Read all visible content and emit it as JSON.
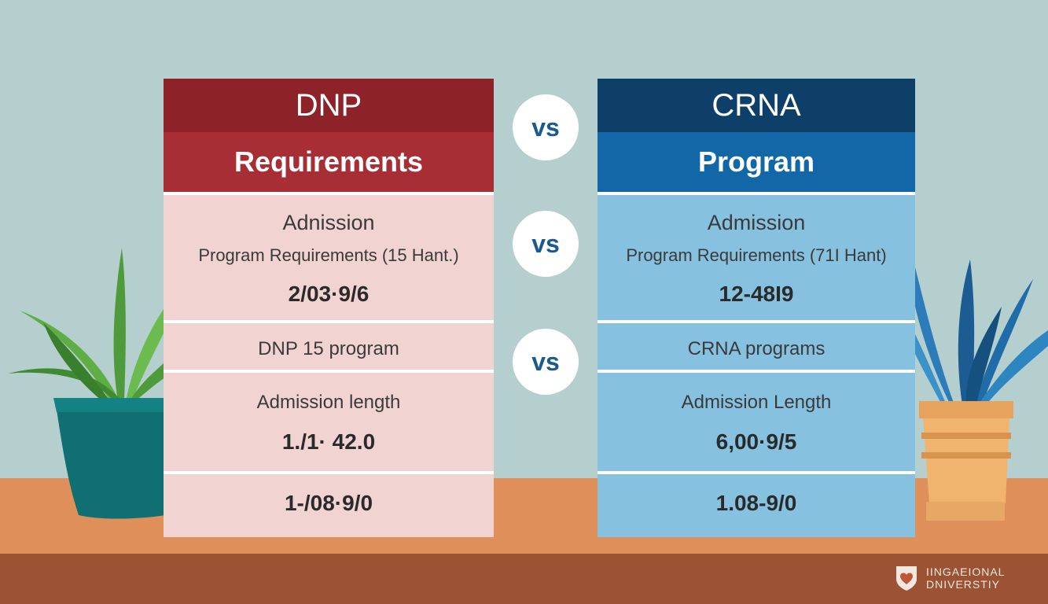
{
  "left_panel": {
    "title": "DNP",
    "subtitle": "Requirements",
    "admission": "Adnission",
    "program_requirements": "Program Requirements (15 Hant.)",
    "value_1": "2/03·9/6",
    "program": "DNP  15 program",
    "admission_length": "Admission length",
    "value_2": "1./1· 42.0",
    "value_3": "1-/08·9/0",
    "colors": {
      "header": "#8e2229",
      "subheader": "#a62e34",
      "body": "#f1d3d1"
    }
  },
  "right_panel": {
    "title": "CRNA",
    "subtitle": "Program",
    "admission": "Admission",
    "program_requirements": "Program Requirements (71I Hant)",
    "value_1": "12-48I9",
    "program": "CRNA programs",
    "admission_length": "Admission Length",
    "value_2": "6,00·9/5",
    "value_3": "1.08-9/0",
    "colors": {
      "header": "#0e3f68",
      "subheader": "#1268a6",
      "body": "#86c2e0"
    }
  },
  "vs_badges": [
    "vs",
    "vs",
    "vs"
  ],
  "logo": {
    "line1": "IINGAEIONAL",
    "line2": "DNIVERSTIY",
    "icon": "heart-shield-icon"
  },
  "decor": {
    "left_plant": "potted-plant-green",
    "right_plant": "potted-plant-blue"
  }
}
